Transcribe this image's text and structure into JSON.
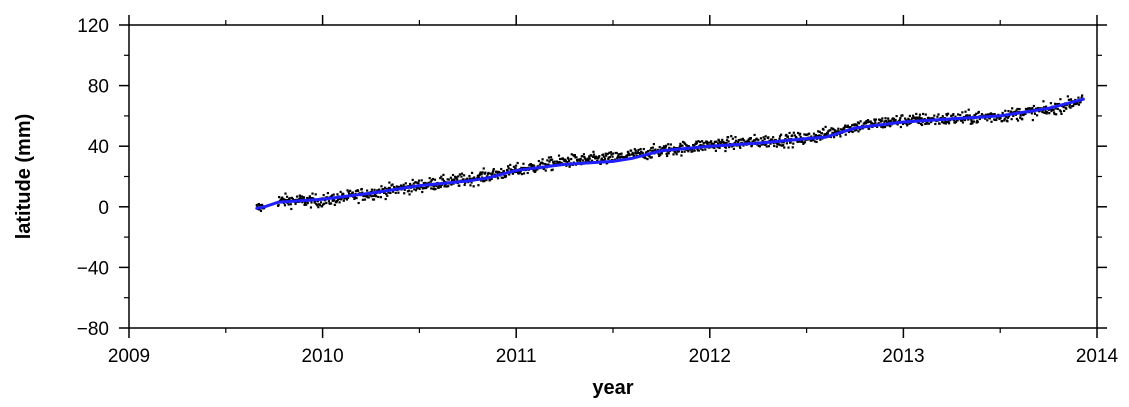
{
  "chart_data": {
    "type": "scatter",
    "title": "",
    "xlabel": "year",
    "ylabel": "latitude (mm)",
    "xlim": [
      2009,
      2014
    ],
    "ylim": [
      -80,
      120
    ],
    "x_ticks": [
      2009,
      2010,
      2011,
      2012,
      2013,
      2014
    ],
    "x_tick_labels": [
      "2009",
      "2010",
      "2011",
      "2012",
      "2013",
      "2014"
    ],
    "y_ticks": [
      -80,
      -40,
      0,
      40,
      80,
      120
    ],
    "y_tick_labels": [
      "−80",
      "−40",
      "0",
      "40",
      "80",
      "120"
    ],
    "grid": false,
    "colors": {
      "points": "#000000",
      "trend": "#1f1fff",
      "axis": "#000000"
    },
    "series": [
      {
        "kind": "points",
        "daily_spread": 3.5,
        "segments": [
          {
            "x_start": 2009.66,
            "x_end": 2009.7
          },
          {
            "x_start": 2009.77,
            "x_end": 2013.93
          }
        ],
        "profile": [
          [
            2009.66,
            -1
          ],
          [
            2009.7,
            0
          ],
          [
            2009.77,
            4
          ],
          [
            2010.0,
            4
          ],
          [
            2010.25,
            9
          ],
          [
            2010.5,
            14
          ],
          [
            2010.75,
            18
          ],
          [
            2011.0,
            24
          ],
          [
            2011.25,
            30
          ],
          [
            2011.5,
            32
          ],
          [
            2011.75,
            37
          ],
          [
            2012.0,
            41
          ],
          [
            2012.25,
            43
          ],
          [
            2012.5,
            45
          ],
          [
            2012.75,
            53
          ],
          [
            2013.0,
            57
          ],
          [
            2013.25,
            58
          ],
          [
            2013.5,
            60
          ],
          [
            2013.75,
            64
          ],
          [
            2013.93,
            71
          ]
        ]
      },
      {
        "kind": "trend-line",
        "x": [
          2009.66,
          2009.7,
          2009.77,
          2010.0,
          2010.25,
          2010.5,
          2010.75,
          2010.85,
          2011.0,
          2011.25,
          2011.5,
          2011.6,
          2011.75,
          2012.0,
          2012.25,
          2012.5,
          2012.6,
          2012.75,
          2013.0,
          2013.25,
          2013.5,
          2013.75,
          2013.93
        ],
        "y": [
          -1,
          0,
          3,
          5,
          9,
          14,
          17,
          19,
          24,
          28,
          30,
          32,
          37,
          40,
          42,
          45,
          46,
          52,
          56,
          58,
          60,
          65,
          71
        ]
      }
    ]
  }
}
